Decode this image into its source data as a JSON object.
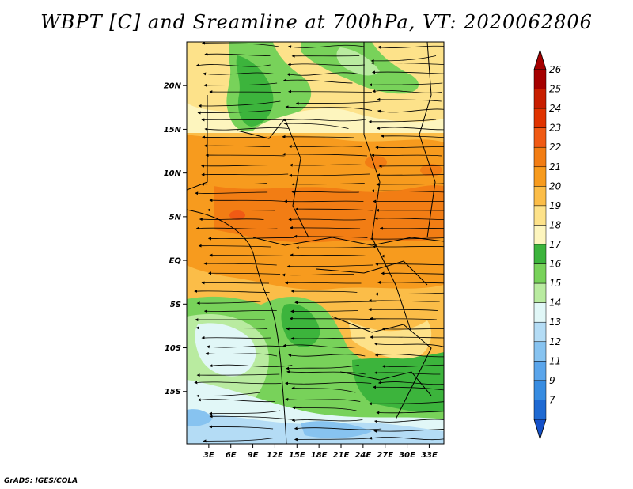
{
  "title": "WBPT [C] and Sreamline at 700hPa, VT: 2020062806",
  "credit": "GrADS: IGES/COLA",
  "map": {
    "lon_range": [
      0,
      35
    ],
    "lat_range": [
      -21,
      25
    ],
    "lat_ticks": [
      {
        "v": 20,
        "label": "20N"
      },
      {
        "v": 15,
        "label": "15N"
      },
      {
        "v": 10,
        "label": "10N"
      },
      {
        "v": 5,
        "label": "5N"
      },
      {
        "v": 0,
        "label": "EQ"
      },
      {
        "v": -5,
        "label": "5S"
      },
      {
        "v": -10,
        "label": "10S"
      },
      {
        "v": -15,
        "label": "15S"
      }
    ],
    "lon_ticks": [
      {
        "v": 3,
        "label": "3E"
      },
      {
        "v": 6,
        "label": "6E"
      },
      {
        "v": 9,
        "label": "9E"
      },
      {
        "v": 12,
        "label": "12E"
      },
      {
        "v": 15,
        "label": "15E"
      },
      {
        "v": 18,
        "label": "18E"
      },
      {
        "v": 21,
        "label": "21E"
      },
      {
        "v": 24,
        "label": "24E"
      },
      {
        "v": 27,
        "label": "27E"
      },
      {
        "v": 30,
        "label": "30E"
      },
      {
        "v": 33,
        "label": "33E"
      }
    ]
  },
  "colorbar": {
    "levels": [
      {
        "label": "26",
        "color": "#a50000"
      },
      {
        "label": "25",
        "color": "#c81e00"
      },
      {
        "label": "24",
        "color": "#e03300"
      },
      {
        "label": "23",
        "color": "#f05a14"
      },
      {
        "label": "22",
        "color": "#f27d14"
      },
      {
        "label": "21",
        "color": "#f79b1e"
      },
      {
        "label": "20",
        "color": "#fbbd48"
      },
      {
        "label": "19",
        "color": "#fde28a"
      },
      {
        "label": "18",
        "color": "#fdf5be"
      },
      {
        "label": "17",
        "color": "#3cb43c"
      },
      {
        "label": "16",
        "color": "#78d25a"
      },
      {
        "label": "15",
        "color": "#b9eba0"
      },
      {
        "label": "14",
        "color": "#e1f7f7"
      },
      {
        "label": "13",
        "color": "#b4dcf5"
      },
      {
        "label": "12",
        "color": "#87c3f0"
      },
      {
        "label": "11",
        "color": "#5aa5eb"
      },
      {
        "label": "9",
        "color": "#378ce1"
      },
      {
        "label": "7",
        "color": "#1e69d2"
      }
    ],
    "bottom_color": "#1450c8",
    "top_color": "#a50000"
  }
}
